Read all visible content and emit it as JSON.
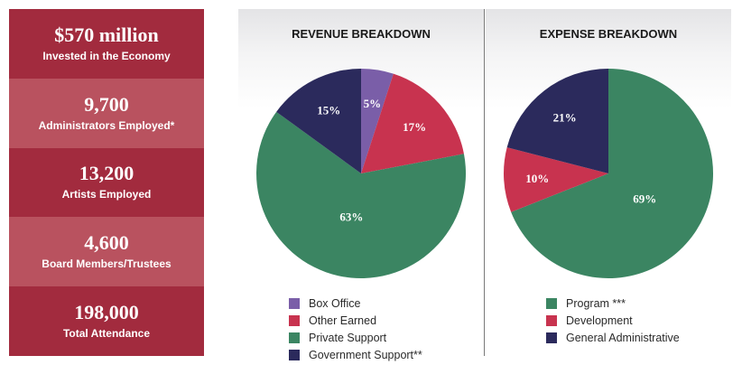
{
  "stats": [
    {
      "value": "$570 million",
      "label": "Invested in the Economy",
      "color": "#a22b3e"
    },
    {
      "value": "9,700",
      "label": "Administrators Employed*",
      "color": "#b9525f"
    },
    {
      "value": "13,200",
      "label": "Artists Employed",
      "color": "#a22b3e"
    },
    {
      "value": "4,600",
      "label": "Board Members/Trustees",
      "color": "#b9525f"
    },
    {
      "value": "198,000",
      "label": "Total Attendance",
      "color": "#a22b3e"
    }
  ],
  "chart_data": [
    {
      "type": "pie",
      "title": "REVENUE BREAKDOWN",
      "legend_position": "bottom",
      "slices": [
        {
          "name": "Box Office",
          "value": 5,
          "label": "5%",
          "color": "#7a5ea8",
          "label_color": "#ffffff"
        },
        {
          "name": "Other Earned",
          "value": 17,
          "label": "17%",
          "color": "#c8334f",
          "label_color": "#ffffff"
        },
        {
          "name": "Private Support",
          "value": 63,
          "label": "63%",
          "color": "#3b8562",
          "label_color": "#ffffff"
        },
        {
          "name": "Government Support**",
          "value": 15,
          "label": "15%",
          "color": "#2b2a5c",
          "label_color": "#ffffff"
        }
      ]
    },
    {
      "type": "pie",
      "title": "EXPENSE BREAKDOWN",
      "legend_position": "bottom",
      "slices": [
        {
          "name": "Program ***",
          "value": 69,
          "label": "69%",
          "color": "#3b8562",
          "label_color": "#ffffff"
        },
        {
          "name": "Development",
          "value": 10,
          "label": "10%",
          "color": "#c8334f",
          "label_color": "#ffffff"
        },
        {
          "name": "General Administrative",
          "value": 21,
          "label": "21%",
          "color": "#2b2a5c",
          "label_color": "#ffffff"
        }
      ]
    }
  ]
}
